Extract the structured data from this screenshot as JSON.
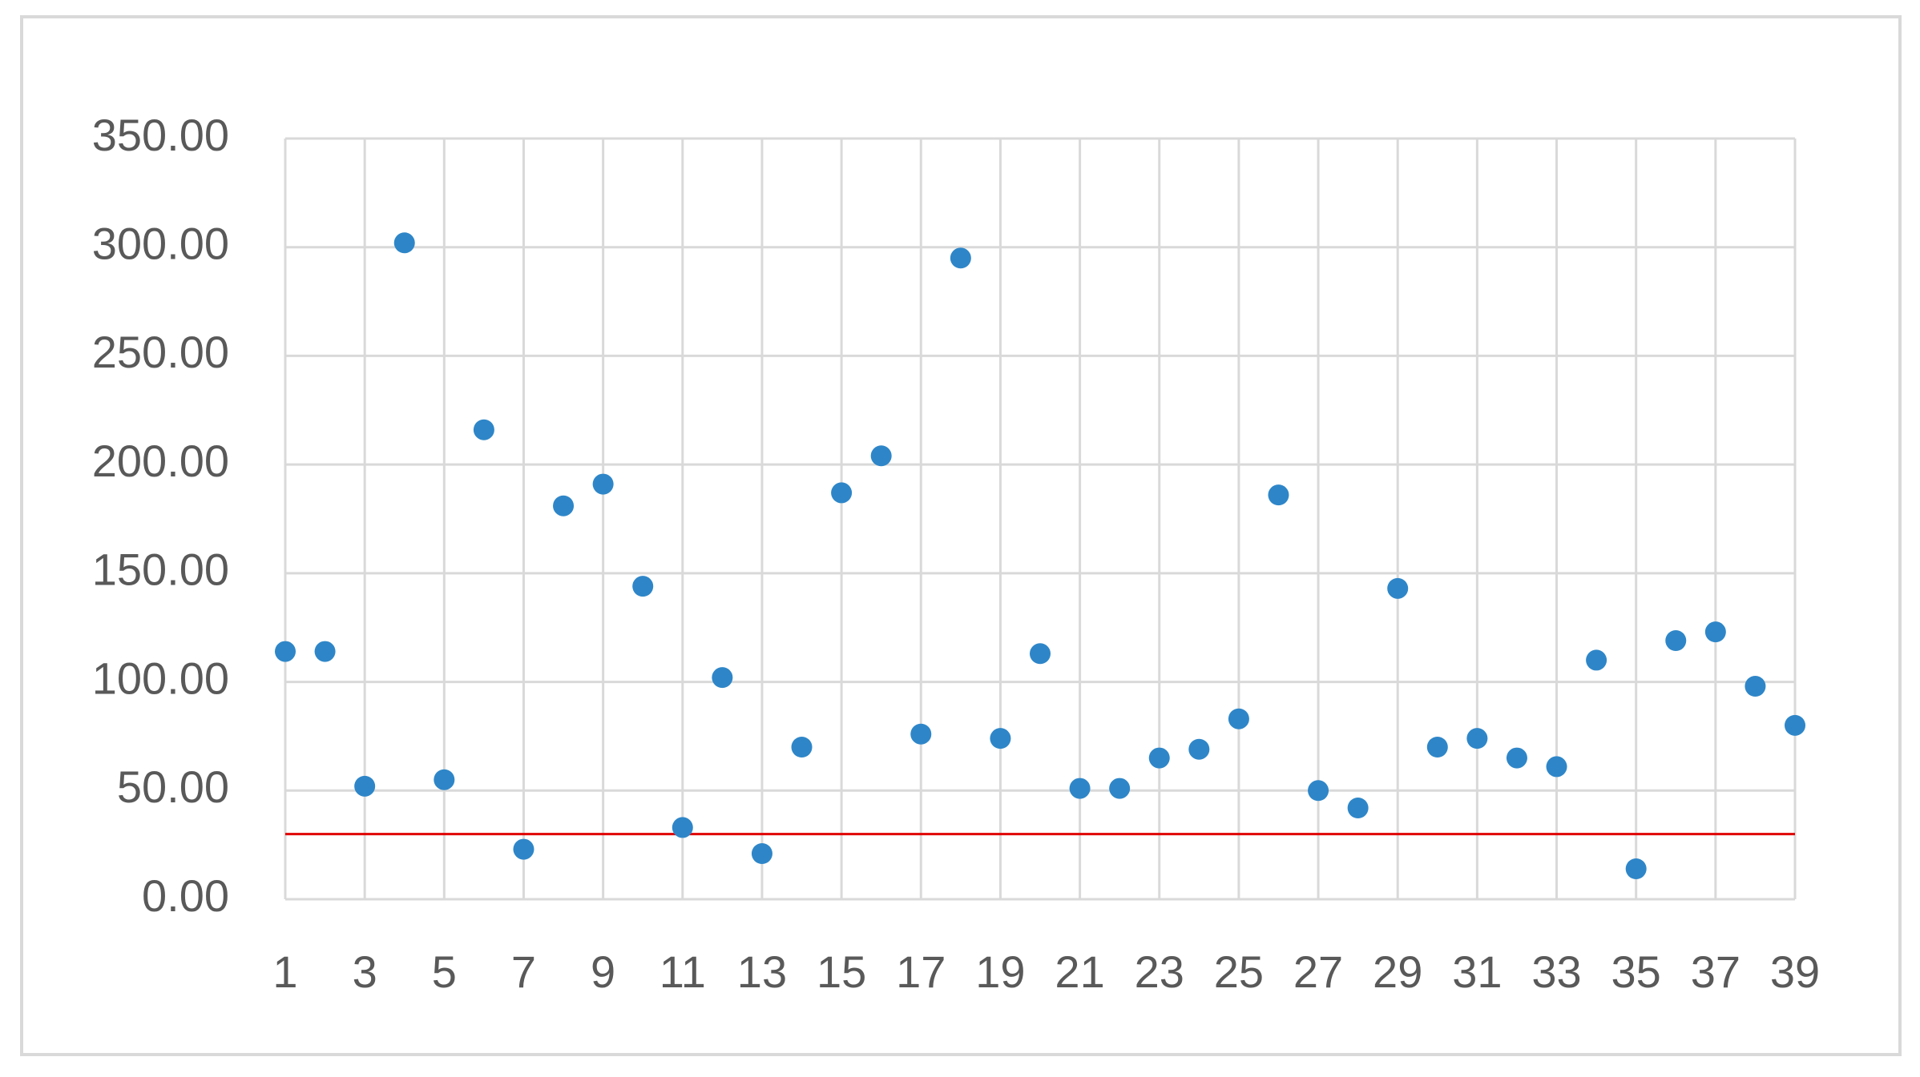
{
  "chart_data": {
    "type": "scatter",
    "x": [
      1,
      2,
      3,
      4,
      5,
      6,
      7,
      8,
      9,
      10,
      11,
      12,
      13,
      14,
      15,
      16,
      17,
      18,
      19,
      20,
      21,
      22,
      23,
      24,
      25,
      26,
      27,
      28,
      29,
      30,
      31,
      32,
      33,
      34,
      35,
      36,
      37,
      38,
      39
    ],
    "series": [
      {
        "color": "#2e86c8",
        "values": [
          114,
          114,
          52,
          302,
          55,
          216,
          23,
          181,
          191,
          144,
          33,
          102,
          21,
          70,
          187,
          204,
          76,
          295,
          74,
          113,
          51,
          51,
          65,
          69,
          83,
          186,
          50,
          42,
          143,
          70,
          74,
          65,
          61,
          110,
          14,
          119,
          123,
          98,
          80
        ]
      }
    ],
    "reference_line": {
      "value": 30,
      "color": "#e00000"
    },
    "xlim": [
      1,
      39
    ],
    "xticks": [
      1,
      3,
      5,
      7,
      9,
      11,
      13,
      15,
      17,
      19,
      21,
      23,
      25,
      27,
      29,
      31,
      33,
      35,
      37,
      39
    ],
    "ylim": [
      0,
      350
    ],
    "yticks": [
      {
        "value": 0,
        "label": "0.00"
      },
      {
        "value": 50,
        "label": "50.00"
      },
      {
        "value": 100,
        "label": "100.00"
      },
      {
        "value": 150,
        "label": "150.00"
      },
      {
        "value": 200,
        "label": "200.00"
      },
      {
        "value": 250,
        "label": "250.00"
      },
      {
        "value": 300,
        "label": "300.00"
      },
      {
        "value": 350,
        "label": "350.00"
      }
    ],
    "grid": true
  }
}
